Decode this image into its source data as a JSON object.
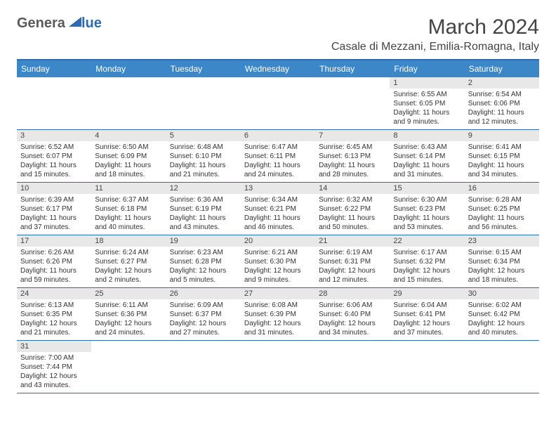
{
  "logo": {
    "text1": "Genera",
    "text2": "lue"
  },
  "title": "March 2024",
  "location": "Casale di Mezzani, Emilia-Romagna, Italy",
  "colors": {
    "header_bg": "#3b87c8",
    "accent": "#2d6cb5",
    "daynum_bg": "#e8e8e8",
    "text": "#333333"
  },
  "weekdays": [
    "Sunday",
    "Monday",
    "Tuesday",
    "Wednesday",
    "Thursday",
    "Friday",
    "Saturday"
  ],
  "weeks": [
    [
      {
        "empty": true
      },
      {
        "empty": true
      },
      {
        "empty": true
      },
      {
        "empty": true
      },
      {
        "empty": true
      },
      {
        "day": "1",
        "sunrise": "6:55 AM",
        "sunset": "6:05 PM",
        "daylight": "11 hours and 9 minutes."
      },
      {
        "day": "2",
        "sunrise": "6:54 AM",
        "sunset": "6:06 PM",
        "daylight": "11 hours and 12 minutes."
      }
    ],
    [
      {
        "day": "3",
        "sunrise": "6:52 AM",
        "sunset": "6:07 PM",
        "daylight": "11 hours and 15 minutes."
      },
      {
        "day": "4",
        "sunrise": "6:50 AM",
        "sunset": "6:09 PM",
        "daylight": "11 hours and 18 minutes."
      },
      {
        "day": "5",
        "sunrise": "6:48 AM",
        "sunset": "6:10 PM",
        "daylight": "11 hours and 21 minutes."
      },
      {
        "day": "6",
        "sunrise": "6:47 AM",
        "sunset": "6:11 PM",
        "daylight": "11 hours and 24 minutes."
      },
      {
        "day": "7",
        "sunrise": "6:45 AM",
        "sunset": "6:13 PM",
        "daylight": "11 hours and 28 minutes."
      },
      {
        "day": "8",
        "sunrise": "6:43 AM",
        "sunset": "6:14 PM",
        "daylight": "11 hours and 31 minutes."
      },
      {
        "day": "9",
        "sunrise": "6:41 AM",
        "sunset": "6:15 PM",
        "daylight": "11 hours and 34 minutes."
      }
    ],
    [
      {
        "day": "10",
        "sunrise": "6:39 AM",
        "sunset": "6:17 PM",
        "daylight": "11 hours and 37 minutes."
      },
      {
        "day": "11",
        "sunrise": "6:37 AM",
        "sunset": "6:18 PM",
        "daylight": "11 hours and 40 minutes."
      },
      {
        "day": "12",
        "sunrise": "6:36 AM",
        "sunset": "6:19 PM",
        "daylight": "11 hours and 43 minutes."
      },
      {
        "day": "13",
        "sunrise": "6:34 AM",
        "sunset": "6:21 PM",
        "daylight": "11 hours and 46 minutes."
      },
      {
        "day": "14",
        "sunrise": "6:32 AM",
        "sunset": "6:22 PM",
        "daylight": "11 hours and 50 minutes."
      },
      {
        "day": "15",
        "sunrise": "6:30 AM",
        "sunset": "6:23 PM",
        "daylight": "11 hours and 53 minutes."
      },
      {
        "day": "16",
        "sunrise": "6:28 AM",
        "sunset": "6:25 PM",
        "daylight": "11 hours and 56 minutes."
      }
    ],
    [
      {
        "day": "17",
        "sunrise": "6:26 AM",
        "sunset": "6:26 PM",
        "daylight": "11 hours and 59 minutes."
      },
      {
        "day": "18",
        "sunrise": "6:24 AM",
        "sunset": "6:27 PM",
        "daylight": "12 hours and 2 minutes."
      },
      {
        "day": "19",
        "sunrise": "6:23 AM",
        "sunset": "6:28 PM",
        "daylight": "12 hours and 5 minutes."
      },
      {
        "day": "20",
        "sunrise": "6:21 AM",
        "sunset": "6:30 PM",
        "daylight": "12 hours and 9 minutes."
      },
      {
        "day": "21",
        "sunrise": "6:19 AM",
        "sunset": "6:31 PM",
        "daylight": "12 hours and 12 minutes."
      },
      {
        "day": "22",
        "sunrise": "6:17 AM",
        "sunset": "6:32 PM",
        "daylight": "12 hours and 15 minutes."
      },
      {
        "day": "23",
        "sunrise": "6:15 AM",
        "sunset": "6:34 PM",
        "daylight": "12 hours and 18 minutes."
      }
    ],
    [
      {
        "day": "24",
        "sunrise": "6:13 AM",
        "sunset": "6:35 PM",
        "daylight": "12 hours and 21 minutes."
      },
      {
        "day": "25",
        "sunrise": "6:11 AM",
        "sunset": "6:36 PM",
        "daylight": "12 hours and 24 minutes."
      },
      {
        "day": "26",
        "sunrise": "6:09 AM",
        "sunset": "6:37 PM",
        "daylight": "12 hours and 27 minutes."
      },
      {
        "day": "27",
        "sunrise": "6:08 AM",
        "sunset": "6:39 PM",
        "daylight": "12 hours and 31 minutes."
      },
      {
        "day": "28",
        "sunrise": "6:06 AM",
        "sunset": "6:40 PM",
        "daylight": "12 hours and 34 minutes."
      },
      {
        "day": "29",
        "sunrise": "6:04 AM",
        "sunset": "6:41 PM",
        "daylight": "12 hours and 37 minutes."
      },
      {
        "day": "30",
        "sunrise": "6:02 AM",
        "sunset": "6:42 PM",
        "daylight": "12 hours and 40 minutes."
      }
    ],
    [
      {
        "day": "31",
        "sunrise": "7:00 AM",
        "sunset": "7:44 PM",
        "daylight": "12 hours and 43 minutes."
      },
      {
        "empty": true
      },
      {
        "empty": true
      },
      {
        "empty": true
      },
      {
        "empty": true
      },
      {
        "empty": true
      },
      {
        "empty": true
      }
    ]
  ],
  "labels": {
    "sunrise": "Sunrise: ",
    "sunset": "Sunset: ",
    "daylight": "Daylight: "
  }
}
